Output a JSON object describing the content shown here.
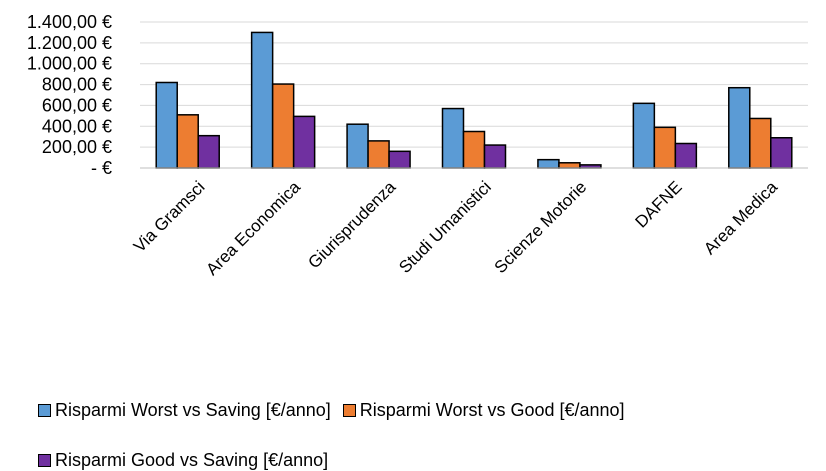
{
  "chart_data": {
    "type": "bar",
    "title": "",
    "xlabel": "",
    "ylabel": "",
    "categories": [
      "Via Gramsci",
      "Area Economica",
      "Giurisprudenza",
      "Studi Umanistici",
      "Scienze Motorie",
      "DAFNE",
      "Area Medica"
    ],
    "series": [
      {
        "name": "Risparmi Worst vs Saving [€/anno]",
        "color": "#5B9BD5",
        "values": [
          820,
          1300,
          420,
          570,
          80,
          620,
          770
        ]
      },
      {
        "name": "Risparmi Worst vs Good [€/anno]",
        "color": "#ED7D31",
        "values": [
          510,
          805,
          260,
          350,
          50,
          390,
          475
        ]
      },
      {
        "name": "Risparmi Good vs Saving [€/anno]",
        "color": "#7030A0",
        "values": [
          310,
          495,
          160,
          220,
          30,
          235,
          290
        ]
      }
    ],
    "ylim": [
      0,
      1400
    ],
    "yticks": [
      0,
      200,
      400,
      600,
      800,
      1000,
      1200,
      1400
    ],
    "ytick_labels": [
      "-   €",
      "200,00 €",
      "400,00 €",
      "600,00 €",
      "800,00 €",
      "1.000,00 €",
      "1.200,00 €",
      "1.400,00 €"
    ],
    "grid": true,
    "legend_position": "bottom"
  }
}
